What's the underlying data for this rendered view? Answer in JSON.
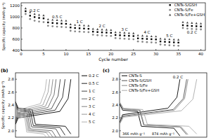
{
  "chart_data": [
    {
      "type": "scatter",
      "x": [
        1,
        2,
        3,
        4,
        5,
        6,
        7,
        8,
        9,
        10,
        11,
        12,
        13,
        14,
        15,
        16,
        17,
        18,
        19,
        20,
        21,
        22,
        23,
        24,
        25,
        26,
        27,
        28,
        29,
        30,
        31,
        32,
        33,
        34,
        35,
        36,
        37,
        38,
        39,
        40
      ],
      "xlim": [
        0,
        41
      ],
      "xticks": [
        0,
        5,
        10,
        15,
        20,
        25,
        30,
        35,
        40
      ],
      "ylim": [
        400,
        1250
      ],
      "yticks": [
        400,
        600,
        800,
        1000,
        1200
      ],
      "x_label": "Cycle number",
      "y_label": "Specific capacity (mAh g⁻¹)",
      "legend": "top-right",
      "annotations": [
        "0.2 C",
        "0.5 C",
        "1 C",
        "2 C",
        "3 C",
        "4 C",
        "5 C",
        "0.2 C"
      ],
      "series": [
        {
          "name": "CNTs-S/GSH",
          "color": "#000000",
          "marker": "square",
          "values": [
            1100,
            1020,
            995,
            980,
            972,
            900,
            890,
            884,
            879,
            875,
            810,
            800,
            795,
            790,
            786,
            735,
            728,
            722,
            718,
            714,
            675,
            670,
            665,
            660,
            656,
            615,
            610,
            605,
            600,
            596,
            560,
            554,
            548,
            544,
            540,
            850,
            842,
            836,
            832,
            828
          ]
        },
        {
          "name": "CNTs-S/Fe",
          "color": "#888888",
          "marker": "circle",
          "values": [
            1050,
            960,
            930,
            915,
            905,
            840,
            830,
            824,
            819,
            815,
            750,
            740,
            735,
            730,
            726,
            680,
            672,
            666,
            662,
            658,
            620,
            614,
            608,
            603,
            599,
            560,
            554,
            548,
            543,
            539,
            505,
            498,
            492,
            487,
            483,
            800,
            790,
            784,
            779,
            775
          ]
        },
        {
          "name": "CNTs-S/Fe+GSH",
          "color": "#444444",
          "marker": "triangle",
          "values": [
            1150,
            1080,
            1050,
            1035,
            1025,
            955,
            945,
            940,
            935,
            930,
            865,
            855,
            850,
            845,
            840,
            785,
            778,
            772,
            768,
            764,
            725,
            720,
            715,
            710,
            706,
            668,
            662,
            657,
            652,
            648,
            610,
            604,
            598,
            594,
            590,
            905,
            895,
            890,
            885,
            880
          ]
        }
      ]
    },
    {
      "type": "line",
      "title": "(b)",
      "xlim": [
        0,
        1200
      ],
      "ylim": [
        1.9,
        2.9
      ],
      "yticks": [
        {
          "value": 2,
          "label": "2.0"
        },
        2.2,
        2.4,
        2.6,
        2.8
      ],
      "y_label": "Specific capacity (mAh g⁻¹)",
      "tick_labels": "y",
      "legend": "right",
      "series": [
        {
          "name": "0.2 C",
          "color": "#000000",
          "x": [
            0,
            53,
            315,
            378,
            945,
            1050,
            null,
            0,
            53,
            840,
            998,
            1050
          ],
          "values": [
            2.45,
            2.35,
            2.33,
            2.1,
            2.07,
            1.95,
            null,
            2.1,
            2.2,
            2.3,
            2.5,
            2.8
          ]
        },
        {
          "name": "0.5 C",
          "color": "#222222",
          "x": [
            0,
            47,
            282,
            338,
            846,
            940,
            null,
            0,
            47,
            752,
            893,
            940
          ],
          "values": [
            2.45,
            2.33,
            2.31,
            2.08,
            2.05,
            1.93,
            null,
            2.12,
            2.22,
            2.32,
            2.52,
            2.8
          ]
        },
        {
          "name": "1 C",
          "color": "#444444",
          "x": [
            0,
            43,
            255,
            306,
            765,
            850,
            null,
            0,
            43,
            680,
            808,
            850
          ],
          "values": [
            2.44,
            2.31,
            2.29,
            2.06,
            2.03,
            1.91,
            null,
            2.14,
            2.24,
            2.34,
            2.54,
            2.8
          ]
        },
        {
          "name": "2 C",
          "color": "#666666",
          "x": [
            0,
            39,
            231,
            277,
            693,
            770,
            null,
            0,
            39,
            616,
            732,
            770
          ],
          "values": [
            2.43,
            2.28,
            2.26,
            2.03,
            2.0,
            1.9,
            null,
            2.16,
            2.26,
            2.36,
            2.56,
            2.8
          ]
        },
        {
          "name": "3 C",
          "color": "#808080",
          "x": [
            0,
            36,
            213,
            256,
            639,
            710,
            null,
            0,
            36,
            568,
            675,
            710
          ],
          "values": [
            2.42,
            2.26,
            2.24,
            2.01,
            1.98,
            1.9,
            null,
            2.18,
            2.28,
            2.38,
            2.58,
            2.8
          ]
        },
        {
          "name": "4 C",
          "color": "#999999",
          "x": [
            0,
            33,
            195,
            234,
            585,
            650,
            null,
            0,
            33,
            520,
            618,
            650
          ],
          "values": [
            2.41,
            2.24,
            2.22,
            2.0,
            1.97,
            1.9,
            null,
            2.2,
            2.3,
            2.4,
            2.6,
            2.8
          ]
        },
        {
          "name": "5 C",
          "color": "#b0b0b0",
          "x": [
            0,
            30,
            177,
            212,
            531,
            590,
            null,
            0,
            30,
            472,
            561,
            590
          ],
          "values": [
            2.4,
            2.22,
            2.2,
            1.98,
            1.95,
            1.9,
            null,
            2.22,
            2.32,
            2.42,
            2.62,
            2.8
          ]
        }
      ]
    },
    {
      "type": "line",
      "title": "(c)",
      "xlim": [
        0,
        1300
      ],
      "ylim": [
        1.9,
        2.9
      ],
      "yticks": [
        {
          "value": 2,
          "label": "2.0"
        },
        2.2,
        2.4,
        2.6,
        2.8
      ],
      "tick_labels": "y",
      "legend": "top-left",
      "annotations": [
        "0.2 C",
        "366 mAh g⁻¹",
        "874 mAh g⁻¹"
      ],
      "series": [
        {
          "name": "CNTs-S",
          "color": "#000000",
          "x": [
            0,
            45,
            270,
            324,
            810,
            900,
            null,
            0,
            45,
            720,
            855,
            900
          ],
          "values": [
            2.42,
            2.32,
            2.3,
            2.07,
            2.04,
            1.92,
            null,
            2.12,
            2.25,
            2.35,
            2.52,
            2.8
          ]
        },
        {
          "name": "CNTs-S/GSH",
          "color": "#555555",
          "x": [
            0,
            50,
            300,
            360,
            900,
            1000,
            null,
            0,
            50,
            800,
            950,
            1000
          ],
          "values": [
            2.44,
            2.34,
            2.32,
            2.09,
            2.06,
            1.94,
            null,
            2.11,
            2.23,
            2.33,
            2.5,
            2.8
          ]
        },
        {
          "name": "CNTs-S/Fe",
          "color": "#888888",
          "x": [
            0,
            51,
            306,
            367,
            918,
            1020,
            null,
            0,
            51,
            816,
            969,
            1020
          ],
          "values": [
            2.44,
            2.34,
            2.32,
            2.09,
            2.06,
            1.94,
            null,
            2.11,
            2.22,
            2.32,
            2.5,
            2.8
          ]
        },
        {
          "name": "CNTs-S/Fe+GSH",
          "color": "#aaaaaa",
          "x": [
            0,
            58,
            345,
            414,
            1035,
            1150,
            null,
            0,
            58,
            920,
            1093,
            1150
          ],
          "values": [
            2.45,
            2.35,
            2.33,
            2.1,
            2.07,
            1.95,
            null,
            2.1,
            2.21,
            2.31,
            2.49,
            2.8
          ]
        }
      ]
    }
  ]
}
